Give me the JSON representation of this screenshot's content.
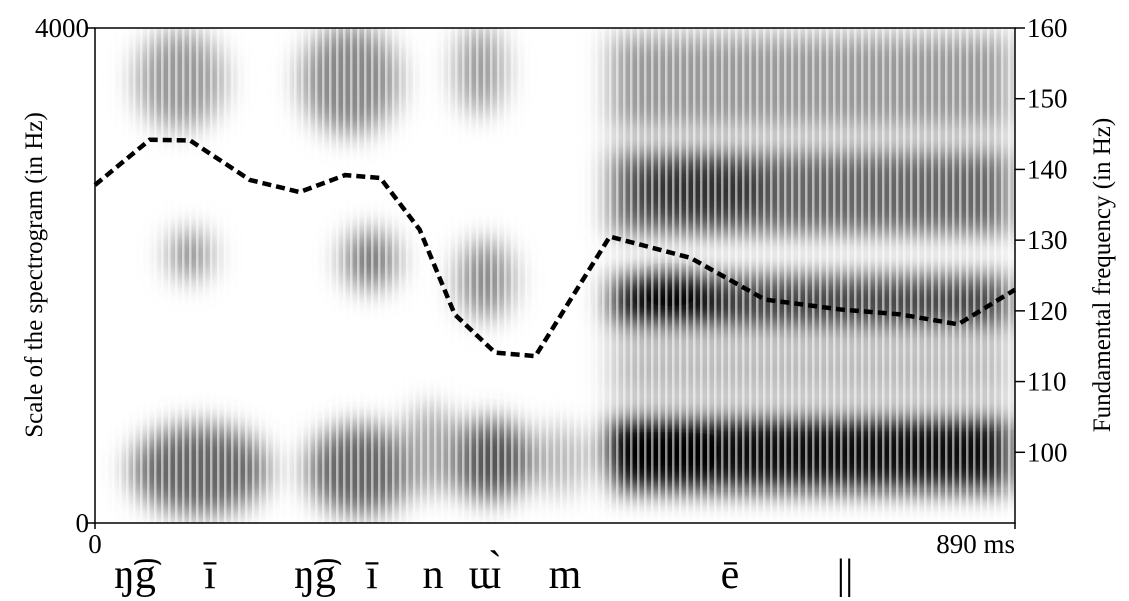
{
  "chart_data": {
    "type": "line",
    "ylabel": "Scale of the spectrogram (in Hz)",
    "y2label": "Fundamental frequency (in Hz)",
    "xlim": [
      0,
      890
    ],
    "xticks": [
      0,
      {
        "value": 890,
        "label": "890 ms"
      }
    ],
    "ylim": [
      0,
      4000
    ],
    "yticks": [
      0,
      4000
    ],
    "y2lim": [
      90,
      160
    ],
    "y2ticks": [
      100,
      110,
      120,
      130,
      140,
      150,
      160
    ],
    "x": [
      0,
      53,
      92,
      150,
      198,
      242,
      276,
      314,
      348,
      387,
      426,
      498,
      576,
      648,
      721,
      779,
      835,
      890
    ],
    "series": [
      {
        "color": "#000000",
        "axis": "y2",
        "values": [
          137.8,
          144.2,
          144.1,
          138.5,
          136.8,
          139.2,
          138.8,
          131.5,
          119.5,
          114.1,
          113.6,
          130.5,
          127.5,
          121.6,
          120.2,
          119.5,
          118.1,
          123.0
        ]
      }
    ],
    "annotations": [
      "ŋ͡g",
      "ī",
      "ŋ͡g",
      "ī",
      "n",
      "ɯ̀",
      "m",
      "ē",
      "||"
    ]
  }
}
